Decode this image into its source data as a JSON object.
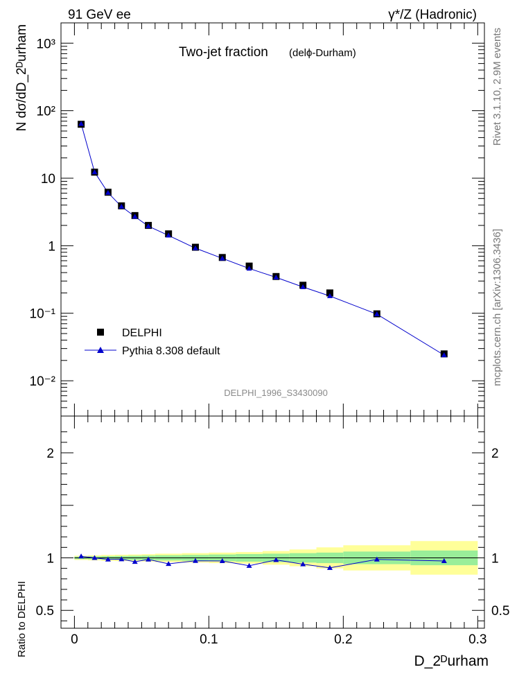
{
  "header": {
    "left": "91 GeV ee",
    "right": "γ*/Z (Hadronic)"
  },
  "side_labels": {
    "top": "Rivet 3.1.10,  2.9M events",
    "bottom": "mcplots.cern.ch [arXiv:1306.3436]"
  },
  "chart_data": [
    {
      "type": "scatter",
      "title": "Two-jet fraction",
      "subtitle": "(delϕ-Durham)",
      "ylabel": "N dσ/dD_2ᴰurham",
      "yscale": "log",
      "ylim": [
        0.003,
        2000
      ],
      "xlim": [
        -0.01,
        0.305
      ],
      "grid": false,
      "legend_position": "lower-left",
      "watermark": "DELPHI_1996_S3430090",
      "y_ticks": [
        {
          "value": 0.01,
          "label": "10⁻²"
        },
        {
          "value": 0.1,
          "label": "10⁻¹"
        },
        {
          "value": 1,
          "label": "1"
        },
        {
          "value": 10,
          "label": "10"
        },
        {
          "value": 100,
          "label": "10²"
        },
        {
          "value": 1000,
          "label": "10³"
        }
      ],
      "series": [
        {
          "name": "DELPHI",
          "marker": "square",
          "color": "#000000",
          "x": [
            0.005,
            0.015,
            0.025,
            0.035,
            0.045,
            0.055,
            0.07,
            0.09,
            0.11,
            0.13,
            0.15,
            0.17,
            0.19,
            0.225,
            0.275
          ],
          "y": [
            63,
            12.3,
            6.2,
            3.9,
            2.8,
            2.0,
            1.5,
            0.95,
            0.67,
            0.5,
            0.35,
            0.26,
            0.2,
            0.098,
            0.025
          ]
        },
        {
          "name": "Pythia 8.308 default",
          "marker": "triangle",
          "color": "#0000cc",
          "x": [
            0.005,
            0.015,
            0.025,
            0.035,
            0.045,
            0.055,
            0.07,
            0.09,
            0.11,
            0.13,
            0.15,
            0.17,
            0.19,
            0.225,
            0.275
          ],
          "y": [
            64,
            12.3,
            6.1,
            3.8,
            2.7,
            1.95,
            1.42,
            0.92,
            0.65,
            0.46,
            0.34,
            0.245,
            0.18,
            0.097,
            0.024
          ]
        }
      ]
    },
    {
      "type": "line",
      "ylabel": "Ratio to DELPHI",
      "xlabel": "D_2ᴰurham",
      "ylim": [
        0.33,
        2.35
      ],
      "xlim": [
        -0.01,
        0.305
      ],
      "y_ticks": [
        {
          "value": 0.5,
          "label": "0.5"
        },
        {
          "value": 1,
          "label": "1"
        },
        {
          "value": 2,
          "label": "2"
        }
      ],
      "x_ticks": [
        {
          "value": 0,
          "label": "0"
        },
        {
          "value": 0.1,
          "label": "0.1"
        },
        {
          "value": 0.2,
          "label": "0.2"
        },
        {
          "value": 0.3,
          "label": "0.3"
        }
      ],
      "bands": {
        "bin_edges": [
          0.0,
          0.01,
          0.02,
          0.03,
          0.04,
          0.05,
          0.06,
          0.08,
          0.1,
          0.12,
          0.14,
          0.16,
          0.18,
          0.2,
          0.25,
          0.3
        ],
        "inner_halfwidth": [
          0.012,
          0.014,
          0.016,
          0.018,
          0.02,
          0.022,
          0.025,
          0.028,
          0.032,
          0.036,
          0.04,
          0.045,
          0.05,
          0.06,
          0.07
        ],
        "outer_halfwidth": [
          0.02,
          0.024,
          0.028,
          0.03,
          0.032,
          0.035,
          0.04,
          0.045,
          0.05,
          0.055,
          0.065,
          0.08,
          0.1,
          0.12,
          0.16
        ],
        "inner_color": "#99ee99",
        "outer_color": "#ffff99"
      },
      "series": [
        {
          "name": "Pythia 8.308 default",
          "marker": "triangle",
          "color": "#0000cc",
          "x": [
            0.005,
            0.015,
            0.025,
            0.035,
            0.045,
            0.055,
            0.07,
            0.09,
            0.11,
            0.13,
            0.15,
            0.17,
            0.19,
            0.225,
            0.275
          ],
          "y": [
            1.015,
            1.0,
            0.985,
            0.988,
            0.963,
            0.985,
            0.943,
            0.972,
            0.97,
            0.925,
            0.98,
            0.94,
            0.905,
            0.985,
            0.97
          ]
        }
      ]
    }
  ]
}
